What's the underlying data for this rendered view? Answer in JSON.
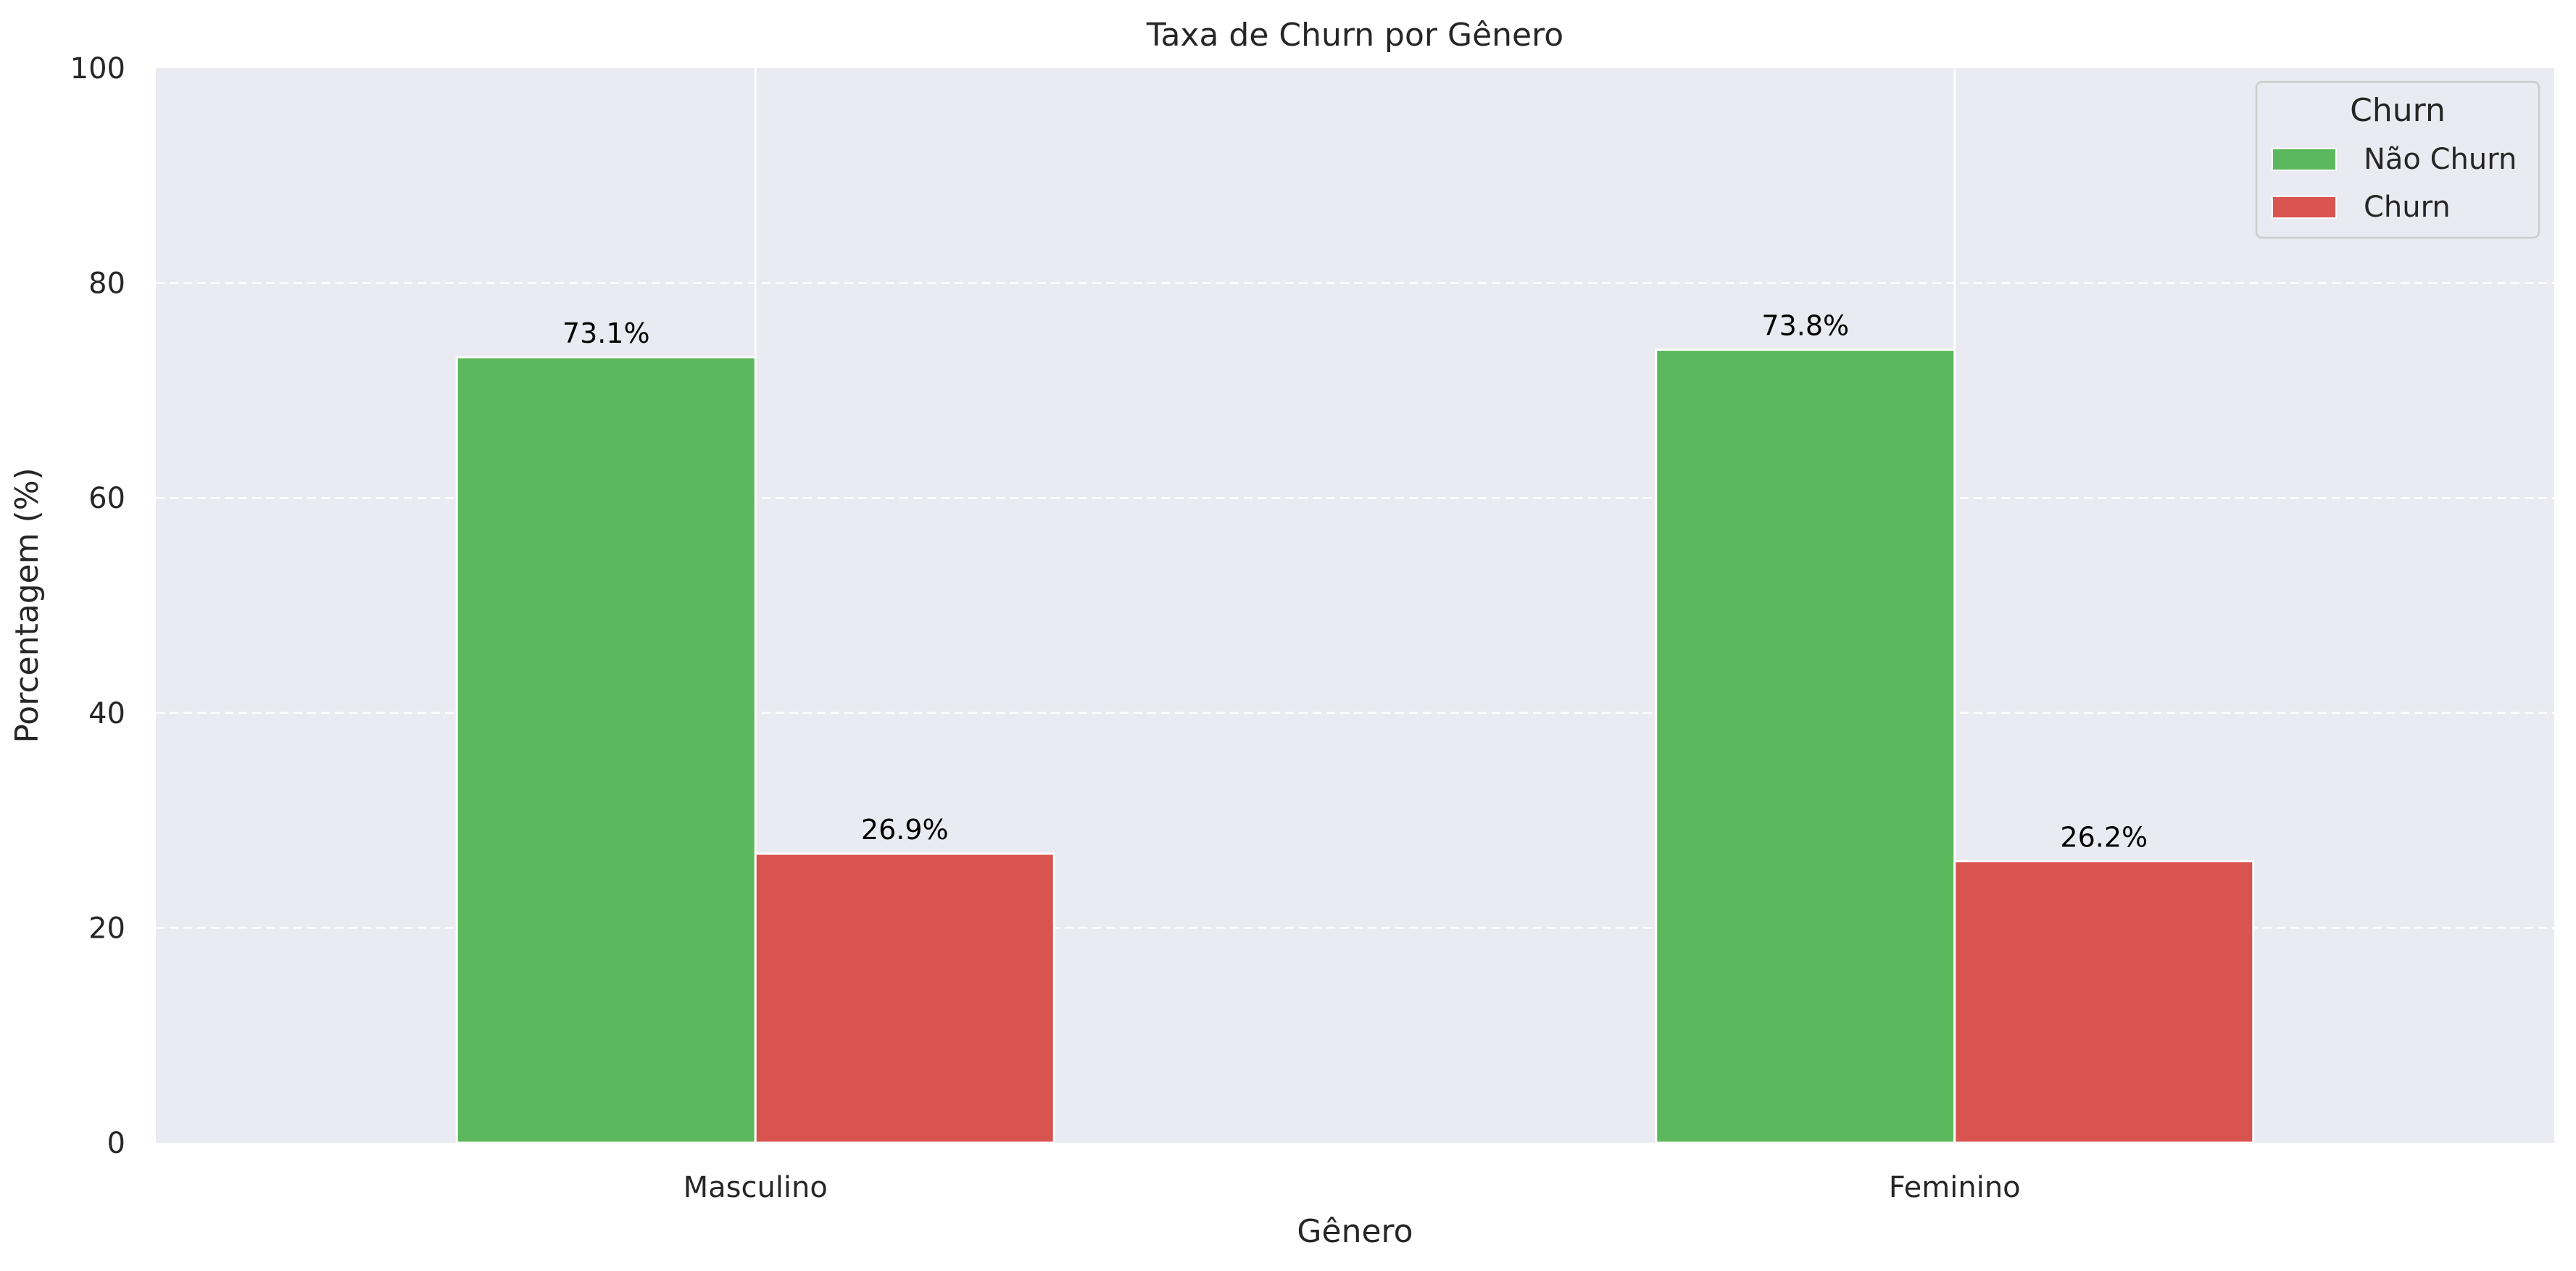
{
  "chart_data": {
    "type": "bar",
    "title": "Taxa de Churn por Gênero",
    "xlabel": "Gênero",
    "ylabel": "Porcentagem (%)",
    "categories": [
      "Masculino",
      "Feminino"
    ],
    "series": [
      {
        "name": "Não Churn",
        "values": [
          73.1,
          73.8
        ],
        "labels": [
          "73.1%",
          "73.8%"
        ],
        "color": "#5cb85c"
      },
      {
        "name": "Churn",
        "values": [
          26.9,
          26.2
        ],
        "labels": [
          "26.9%",
          "26.2%"
        ],
        "color": "#d9534f"
      }
    ],
    "ylim": [
      0,
      100
    ],
    "yticks": [
      0,
      20,
      40,
      60,
      80,
      100
    ],
    "legend": {
      "title": "Churn",
      "position": "top-right"
    },
    "grid": {
      "y": true,
      "y_style": "dashed",
      "x": true
    },
    "colors": {
      "background": "#eaeaf2",
      "grid": "#ffffff",
      "text": "#262626"
    }
  }
}
